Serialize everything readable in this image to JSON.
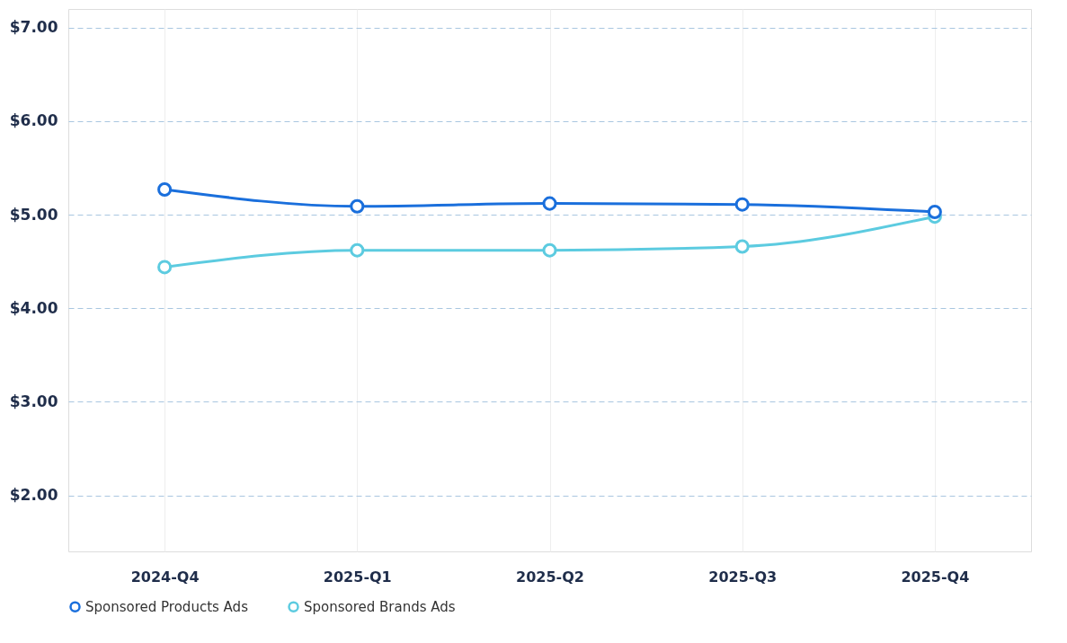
{
  "chart_data": {
    "type": "line",
    "categories": [
      "2024-Q4",
      "2025-Q1",
      "2025-Q2",
      "2025-Q3",
      "2025-Q4"
    ],
    "series": [
      {
        "name": "Sponsored Products Ads",
        "color": "#1a6fdc",
        "values": [
          5.27,
          5.09,
          5.12,
          5.11,
          5.03
        ]
      },
      {
        "name": "Sponsored Brands Ads",
        "color": "#5ccbe0",
        "values": [
          4.44,
          4.62,
          4.62,
          4.66,
          4.98
        ]
      }
    ],
    "ylim": [
      1.4,
      7.2
    ],
    "yticks": [
      {
        "value": 2,
        "label": "$2.00"
      },
      {
        "value": 3,
        "label": "$3.00"
      },
      {
        "value": 4,
        "label": "$4.00"
      },
      {
        "value": 5,
        "label": "$5.00"
      },
      {
        "value": 6,
        "label": "$6.00"
      },
      {
        "value": 7,
        "label": "$7.00"
      }
    ],
    "grid": true,
    "legend": "bottom",
    "marker": "circle",
    "line_style": "solid"
  }
}
